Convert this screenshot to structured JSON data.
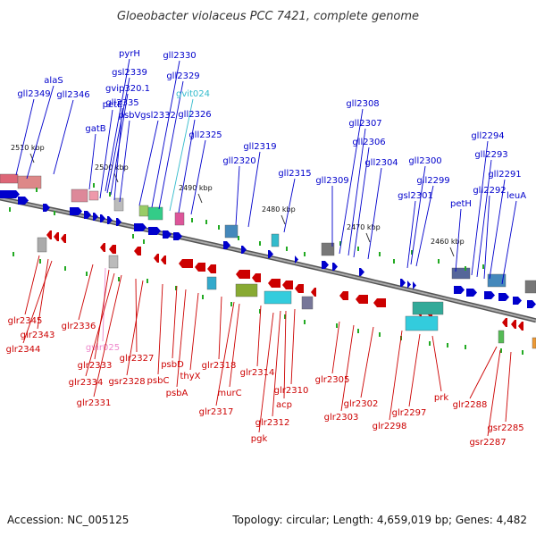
{
  "title": "Gloeobacter violaceus PCC 7421, complete genome",
  "footer": {
    "accession": "Accession: NC_005125",
    "summary": "Topology: circular; Length: 4,659,019 bp; Genes: 4,482"
  },
  "colors": {
    "forward": "#0000cc",
    "reverse": "#cc0000",
    "rna": "#33bbcc",
    "rna_reverse": "#ee88cc",
    "backbone": "#888888"
  },
  "ticks": [
    "2510 kbp",
    "2500 kbp",
    "2490 kbp",
    "2480 kbp",
    "2470 kbp",
    "2460 kbp"
  ],
  "top_labels": [
    {
      "text": "gll2349",
      "kind": "forward"
    },
    {
      "text": "alaS",
      "kind": "forward"
    },
    {
      "text": "gll2346",
      "kind": "forward"
    },
    {
      "text": "pyrH",
      "kind": "forward"
    },
    {
      "text": "gsl2339",
      "kind": "forward"
    },
    {
      "text": "gvip320.1",
      "kind": "forward"
    },
    {
      "text": "petE",
      "kind": "forward"
    },
    {
      "text": "gll2335",
      "kind": "forward"
    },
    {
      "text": "psbV",
      "kind": "forward"
    },
    {
      "text": "gatB",
      "kind": "forward"
    },
    {
      "text": "gsl2332",
      "kind": "forward"
    },
    {
      "text": "gll2330",
      "kind": "forward"
    },
    {
      "text": "gll2329",
      "kind": "forward"
    },
    {
      "text": "gvit024",
      "kind": "rna"
    },
    {
      "text": "gll2326",
      "kind": "forward"
    },
    {
      "text": "gll2325",
      "kind": "forward"
    },
    {
      "text": "gll2320",
      "kind": "forward"
    },
    {
      "text": "gll2319",
      "kind": "forward"
    },
    {
      "text": "gll2315",
      "kind": "forward"
    },
    {
      "text": "gll2309",
      "kind": "forward"
    },
    {
      "text": "gll2308",
      "kind": "forward"
    },
    {
      "text": "gll2307",
      "kind": "forward"
    },
    {
      "text": "gll2306",
      "kind": "forward"
    },
    {
      "text": "gll2304",
      "kind": "forward"
    },
    {
      "text": "gll2300",
      "kind": "forward"
    },
    {
      "text": "gsl2301",
      "kind": "forward"
    },
    {
      "text": "gll2299",
      "kind": "forward"
    },
    {
      "text": "petH",
      "kind": "forward"
    },
    {
      "text": "gll2294",
      "kind": "forward"
    },
    {
      "text": "gll2293",
      "kind": "forward"
    },
    {
      "text": "gll2292",
      "kind": "forward"
    },
    {
      "text": "gll2291",
      "kind": "forward"
    },
    {
      "text": "leuA",
      "kind": "forward"
    }
  ],
  "bottom_labels": [
    {
      "text": "glr2345",
      "kind": "reverse"
    },
    {
      "text": "glr2343",
      "kind": "reverse"
    },
    {
      "text": "glr2344",
      "kind": "reverse"
    },
    {
      "text": "glr2336",
      "kind": "reverse"
    },
    {
      "text": "gvir025",
      "kind": "rna_reverse"
    },
    {
      "text": "glr2333",
      "kind": "reverse"
    },
    {
      "text": "glr2334",
      "kind": "reverse"
    },
    {
      "text": "glr2331",
      "kind": "reverse"
    },
    {
      "text": "glr2327",
      "kind": "reverse"
    },
    {
      "text": "gsr2328",
      "kind": "reverse"
    },
    {
      "text": "psbC",
      "kind": "reverse"
    },
    {
      "text": "psbD",
      "kind": "reverse"
    },
    {
      "text": "psbA",
      "kind": "reverse"
    },
    {
      "text": "thyX",
      "kind": "reverse"
    },
    {
      "text": "glr2318",
      "kind": "reverse"
    },
    {
      "text": "glr2317",
      "kind": "reverse"
    },
    {
      "text": "murC",
      "kind": "reverse"
    },
    {
      "text": "glr2314",
      "kind": "reverse"
    },
    {
      "text": "glr2310",
      "kind": "reverse"
    },
    {
      "text": "acp",
      "kind": "reverse"
    },
    {
      "text": "glr2312",
      "kind": "reverse"
    },
    {
      "text": "pgk",
      "kind": "reverse"
    },
    {
      "text": "glr2305",
      "kind": "reverse"
    },
    {
      "text": "glr2303",
      "kind": "reverse"
    },
    {
      "text": "glr2302",
      "kind": "reverse"
    },
    {
      "text": "glr2298",
      "kind": "reverse"
    },
    {
      "text": "glr2297",
      "kind": "reverse"
    },
    {
      "text": "prk",
      "kind": "reverse"
    },
    {
      "text": "glr2288",
      "kind": "reverse"
    },
    {
      "text": "gsr2285",
      "kind": "reverse"
    },
    {
      "text": "gsr2287",
      "kind": "reverse"
    }
  ]
}
